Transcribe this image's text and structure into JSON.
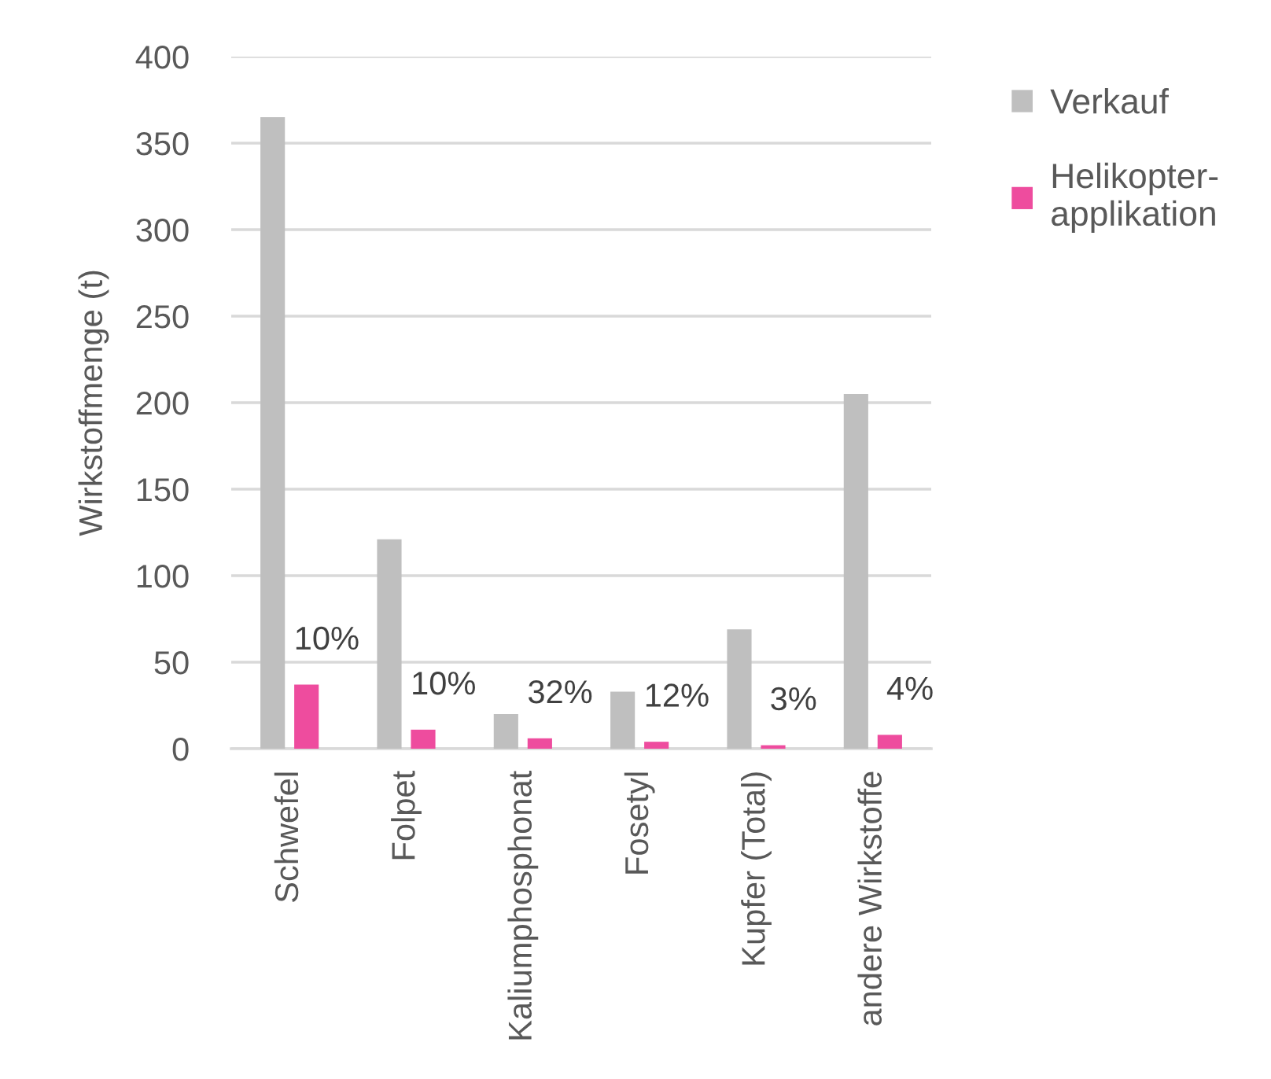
{
  "chart_data": {
    "type": "bar",
    "ylabel": "Wirkstoffmenge (t)",
    "categories": [
      "Schwefel",
      "Folpet",
      "Kaliumphosphonat",
      "Fosetyl",
      "Kupfer (Total)",
      "andere Wirkstoffe"
    ],
    "series": [
      {
        "name": "Verkauf",
        "color": "#bfbfbf",
        "values": [
          365,
          121,
          20,
          33,
          69,
          205
        ]
      },
      {
        "name": "Helikopter-\napplikation",
        "color": "#ee4c9e",
        "values": [
          37,
          11,
          6,
          4,
          2,
          8
        ]
      }
    ],
    "annotations": [
      {
        "text": "10%",
        "x": "Schwefel",
        "y": 37
      },
      {
        "text": "10%",
        "x": "Folpet",
        "y": 11
      },
      {
        "text": "32%",
        "x": "Kaliumphosphonat",
        "y": 6
      },
      {
        "text": "12%",
        "x": "Fosetyl",
        "y": 4
      },
      {
        "text": "3%",
        "x": "Kupfer (Total)",
        "y": 2
      },
      {
        "text": "4%",
        "x": "andere Wirkstoffe",
        "y": 8
      }
    ],
    "ylim": [
      0,
      400
    ],
    "yticks": [
      0,
      50,
      100,
      150,
      200,
      250,
      300,
      350,
      400
    ],
    "grid": "y",
    "legend": "top right"
  }
}
